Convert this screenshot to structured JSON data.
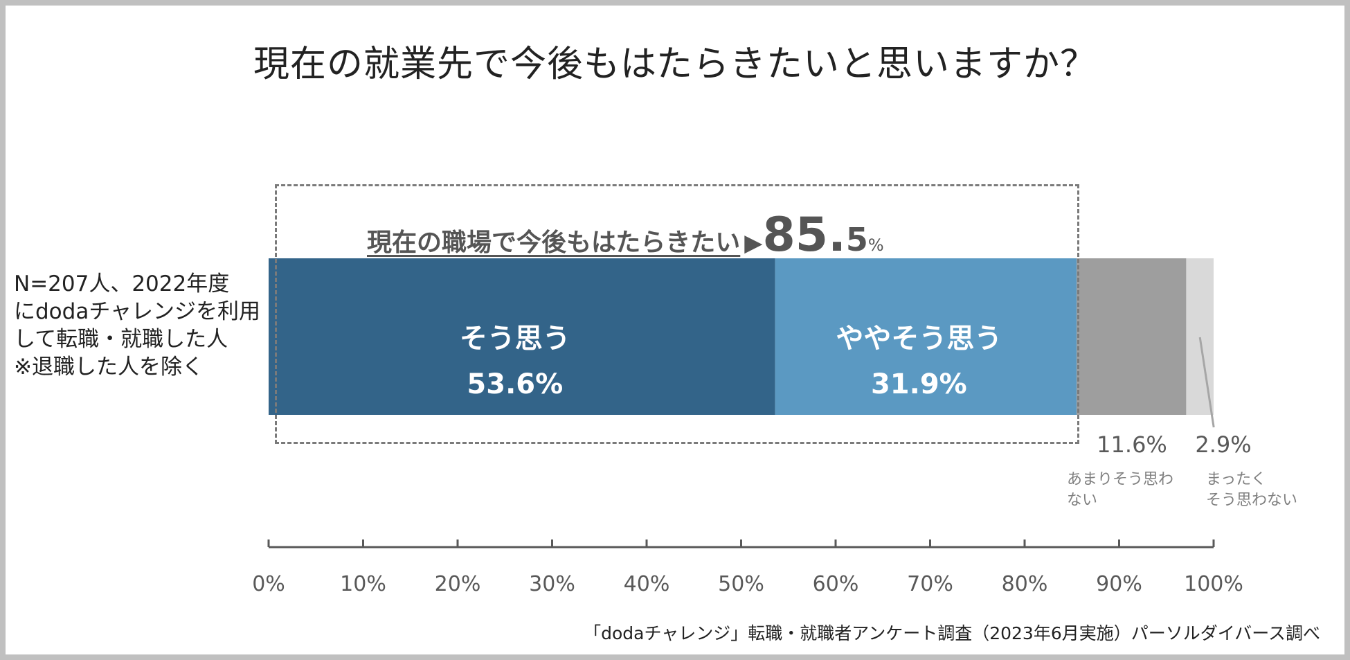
{
  "title": "現在の就業先で今後もはたらきたいと思いますか？",
  "sample_note": [
    "N=207人、2022年度",
    "にdodaチャレンジを利用",
    "して転職・就職した人",
    "※退職した人を除く"
  ],
  "highlight": {
    "label": "現在の職場で今後もはたらきたい",
    "arrow": "▶",
    "value_int": "85.",
    "value_dec": "5",
    "unit": "%"
  },
  "source": "「dodaチャレンジ」転職・就職者アンケート調査（2023年6月実施）パーソルダイバース調べ",
  "colors": {
    "strongly_agree": "#336489",
    "agree": "#5b99c2",
    "disagree": "#9e9e9e",
    "strongly_disagree": "#d9d9d9"
  },
  "chart_data": {
    "type": "bar",
    "orientation": "horizontal-stacked",
    "title": "現在の就業先で今後もはたらきたいと思いますか？",
    "segments": [
      {
        "label": "そう思う",
        "value": 53.6,
        "display": "53.6%",
        "label_position": "inside",
        "label_lines": [
          "そう思う"
        ],
        "color_key": "strongly_agree"
      },
      {
        "label": "ややそう思う",
        "value": 31.9,
        "display": "31.9%",
        "label_position": "inside",
        "label_lines": [
          "ややそう思う"
        ],
        "color_key": "agree"
      },
      {
        "label": "あまりそう思わない",
        "value": 11.6,
        "display": "11.6%",
        "label_position": "below",
        "label_lines": [
          "あまりそう思わ",
          "ない"
        ],
        "color_key": "disagree"
      },
      {
        "label": "まったくそう思わない",
        "value": 2.9,
        "display": "2.9%",
        "label_position": "below",
        "label_lines": [
          "まったく",
          "そう思わない"
        ],
        "color_key": "strongly_disagree"
      }
    ],
    "xlim": [
      0,
      100
    ],
    "xticks": [
      0,
      10,
      20,
      30,
      40,
      50,
      60,
      70,
      80,
      90,
      100
    ],
    "xtick_labels": [
      "0%",
      "10%",
      "20%",
      "30%",
      "40%",
      "50%",
      "60%",
      "70%",
      "80%",
      "90%",
      "100%"
    ],
    "xlabel": "",
    "ylabel": "",
    "grid": false
  }
}
